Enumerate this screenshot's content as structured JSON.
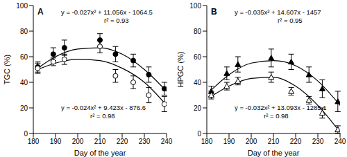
{
  "chart_data": [
    {
      "type": "scatter",
      "title": "A",
      "x_label": "Day of the year",
      "y_label": "TGC (%)",
      "xlim": [
        180,
        240
      ],
      "xticks": [
        180,
        190,
        200,
        210,
        220,
        230,
        240
      ],
      "ylim": [
        0,
        100
      ],
      "yticks": [
        0,
        20,
        40,
        60,
        80,
        100
      ],
      "annotations": [
        {
          "text": "y = -0.027x² + 11.056x - 1064.5"
        },
        {
          "text": "r² = 0.93"
        },
        {
          "text": "y = -0.024x² + 9.423x - 876.6"
        },
        {
          "text": "r² = 0.98"
        }
      ],
      "series": [
        {
          "type": "scatter",
          "marker": "circle",
          "color": "#000000",
          "x": [
            182,
            189,
            194,
            210,
            217,
            225,
            232,
            239
          ],
          "values": [
            52,
            62,
            67,
            73,
            62,
            57,
            46,
            35
          ],
          "errors": [
            4,
            5,
            6,
            5,
            6,
            5,
            6,
            5
          ]
        },
        {
          "type": "scatter",
          "marker": "open_circle",
          "color": "#000000",
          "x": [
            182,
            189,
            194,
            210,
            217,
            225,
            232,
            239
          ],
          "values": [
            51,
            56,
            58,
            68,
            45,
            40,
            30,
            23
          ],
          "errors": [
            4,
            3,
            4,
            5,
            5,
            5,
            6,
            6
          ]
        },
        {
          "type": "line",
          "color": "#000000",
          "x": [
            182,
            190,
            200,
            210,
            220,
            230,
            240
          ],
          "values": [
            51,
            60,
            66,
            67,
            62,
            50,
            33
          ]
        },
        {
          "type": "line",
          "color": "#000000",
          "x": [
            182,
            190,
            200,
            210,
            220,
            230,
            240
          ],
          "values": [
            50,
            55,
            58,
            57,
            51,
            40,
            22
          ]
        }
      ]
    },
    {
      "type": "scatter",
      "title": "B",
      "x_label": "Day of the year",
      "y_label": "HPGC (%)",
      "xlim": [
        180,
        240
      ],
      "xticks": [
        180,
        190,
        200,
        210,
        220,
        230,
        240
      ],
      "ylim": [
        0,
        100
      ],
      "yticks": [
        0,
        20,
        40,
        60,
        80,
        100
      ],
      "annotations": [
        {
          "text": "y = -0.035x² + 14.607x - 1457"
        },
        {
          "text": "r² = 0.95"
        },
        {
          "text": "y = -0.032x² + 13.093x - 1285.1"
        },
        {
          "text": "r² = 0.98"
        }
      ],
      "series": [
        {
          "type": "scatter",
          "marker": "triangle",
          "color": "#000000",
          "x": [
            182,
            189,
            194,
            209,
            218,
            226,
            232,
            239
          ],
          "values": [
            33,
            47,
            54,
            59,
            56,
            46,
            35,
            25
          ],
          "errors": [
            4,
            5,
            6,
            7,
            6,
            6,
            7,
            8
          ]
        },
        {
          "type": "scatter",
          "marker": "open_triangle",
          "color": "#000000",
          "x": [
            182,
            189,
            194,
            209,
            218,
            226,
            232,
            239
          ],
          "values": [
            30,
            37,
            41,
            44,
            33,
            26,
            16,
            3
          ],
          "errors": [
            3,
            3,
            3,
            4,
            3,
            3,
            4,
            3
          ]
        },
        {
          "type": "line",
          "color": "#000000",
          "x": [
            182,
            190,
            200,
            210,
            220,
            230,
            240
          ],
          "values": [
            34,
            46,
            55,
            57,
            53,
            41,
            22
          ]
        },
        {
          "type": "line",
          "color": "#000000",
          "x": [
            182,
            190,
            200,
            210,
            220,
            230,
            240
          ],
          "values": [
            29,
            37,
            43,
            44,
            37,
            22,
            1
          ]
        }
      ]
    }
  ]
}
